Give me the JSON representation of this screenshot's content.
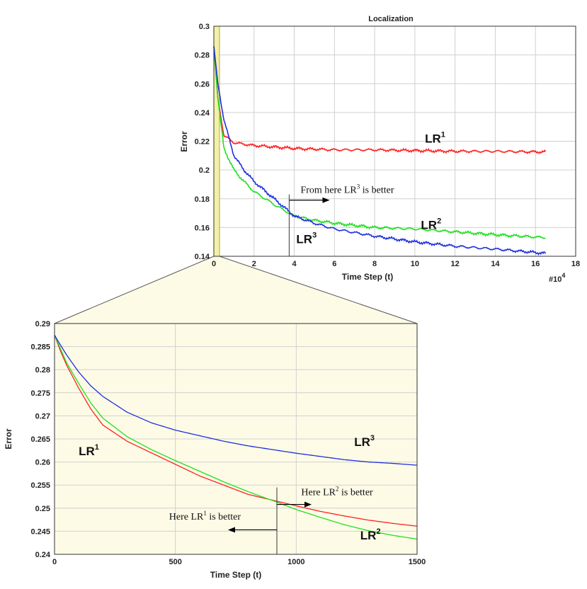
{
  "chart_data": [
    {
      "type": "line",
      "title": "Localization",
      "xlabel": "Time Step (t)",
      "ylabel": "Error",
      "x_multiplier_label": "#10",
      "x_multiplier_exp": "4",
      "xlim": [
        0,
        18
      ],
      "ylim": [
        0.14,
        0.3
      ],
      "xticks": [
        "0",
        "2",
        "4",
        "6",
        "8",
        "10",
        "12",
        "14",
        "16",
        "18"
      ],
      "yticks": [
        "0.14",
        "0.16",
        "0.18",
        "0.2",
        "0.22",
        "0.24",
        "0.26",
        "0.28",
        "0.3"
      ],
      "grid": true,
      "highlight_region_x": [
        0,
        0.15
      ],
      "series": [
        {
          "name": "LR",
          "sup": "1",
          "color": "#ff2020",
          "x": [
            0,
            0.2,
            0.5,
            1,
            1.5,
            2,
            3,
            4,
            6,
            8,
            10,
            12,
            14,
            16.5
          ],
          "y": [
            0.286,
            0.25,
            0.224,
            0.219,
            0.218,
            0.217,
            0.216,
            0.215,
            0.214,
            0.214,
            0.2135,
            0.213,
            0.213,
            0.2125
          ]
        },
        {
          "name": "LR",
          "sup": "2",
          "color": "#20e020",
          "x": [
            0,
            0.2,
            0.5,
            1,
            1.5,
            2,
            3,
            4,
            5,
            6,
            8,
            10,
            12,
            14,
            16.5
          ],
          "y": [
            0.286,
            0.25,
            0.215,
            0.2,
            0.192,
            0.185,
            0.176,
            0.168,
            0.165,
            0.163,
            0.16,
            0.159,
            0.157,
            0.155,
            0.153
          ]
        },
        {
          "name": "LR",
          "sup": "3",
          "color": "#1f2fe0",
          "x": [
            0,
            0.2,
            0.5,
            1,
            1.5,
            2,
            3,
            4,
            5,
            6,
            8,
            10,
            12,
            14,
            16.5
          ],
          "y": [
            0.286,
            0.26,
            0.235,
            0.21,
            0.2,
            0.192,
            0.18,
            0.168,
            0.163,
            0.159,
            0.154,
            0.15,
            0.147,
            0.145,
            0.142
          ]
        }
      ],
      "labels": [
        {
          "text": "LR",
          "sup": "1",
          "x": 10.5,
          "y": 0.219
        },
        {
          "text": "LR",
          "sup": "2",
          "x": 10.3,
          "y": 0.159
        },
        {
          "text": "LR",
          "sup": "3",
          "x": 4.1,
          "y": 0.149
        }
      ],
      "annotation": {
        "pre": "From here LR",
        "sup": "3",
        "post": " is better",
        "x": 3.75,
        "y": 0.184
      },
      "marker_x": 3.75
    },
    {
      "type": "line",
      "xlabel": "Time Step (t)",
      "ylabel": "Error",
      "xlim": [
        0,
        1500
      ],
      "ylim": [
        0.24,
        0.29
      ],
      "xticks": [
        "0",
        "500",
        "1000",
        "1500"
      ],
      "yticks": [
        "0.24",
        "0.245",
        "0.25",
        "0.255",
        "0.26",
        "0.265",
        "0.27",
        "0.275",
        "0.28",
        "0.285",
        "0.29"
      ],
      "grid": true,
      "series": [
        {
          "name": "LR",
          "sup": "1",
          "color": "#ff2020",
          "x": [
            0,
            25,
            50,
            100,
            150,
            200,
            300,
            400,
            500,
            600,
            700,
            800,
            920,
            1000,
            1100,
            1200,
            1300,
            1400,
            1500
          ],
          "y": [
            0.2875,
            0.284,
            0.281,
            0.276,
            0.2715,
            0.268,
            0.2645,
            0.262,
            0.2595,
            0.257,
            0.255,
            0.253,
            0.2515,
            0.2505,
            0.2493,
            0.2483,
            0.2474,
            0.2467,
            0.2461
          ]
        },
        {
          "name": "LR",
          "sup": "2",
          "color": "#20e020",
          "x": [
            0,
            25,
            50,
            100,
            150,
            200,
            300,
            400,
            500,
            600,
            700,
            800,
            920,
            1000,
            1100,
            1200,
            1300,
            1400,
            1500
          ],
          "y": [
            0.2875,
            0.2845,
            0.2815,
            0.277,
            0.2728,
            0.2695,
            0.2655,
            0.2627,
            0.2603,
            0.258,
            0.2557,
            0.2536,
            0.2513,
            0.2497,
            0.248,
            0.2464,
            0.2451,
            0.2441,
            0.2433
          ]
        },
        {
          "name": "LR",
          "sup": "3",
          "color": "#1f2fe0",
          "x": [
            0,
            25,
            50,
            100,
            150,
            200,
            300,
            400,
            500,
            600,
            700,
            800,
            900,
            1000,
            1100,
            1200,
            1300,
            1400,
            1500
          ],
          "y": [
            0.2875,
            0.2853,
            0.2832,
            0.2795,
            0.2765,
            0.2742,
            0.2708,
            0.2685,
            0.2669,
            0.2657,
            0.2645,
            0.2635,
            0.2627,
            0.2619,
            0.2612,
            0.2605,
            0.26,
            0.2597,
            0.2593
          ]
        }
      ],
      "labels": [
        {
          "text": "LR",
          "sup": "1",
          "x": 100,
          "y": 0.2615
        },
        {
          "text": "LR",
          "sup": "3",
          "x": 1240,
          "y": 0.2635
        },
        {
          "text": "LR",
          "sup": "2",
          "x": 1265,
          "y": 0.2432
        }
      ],
      "annotations": [
        {
          "pre": "Here LR",
          "sup": "2",
          "post": " is better",
          "x": 1050,
          "y": 0.2528,
          "anchor": "start"
        },
        {
          "pre": "Here LR",
          "sup": "1",
          "post": " is better",
          "x": 800,
          "y": 0.2475,
          "anchor": "end"
        }
      ],
      "marker_x": 920
    }
  ]
}
